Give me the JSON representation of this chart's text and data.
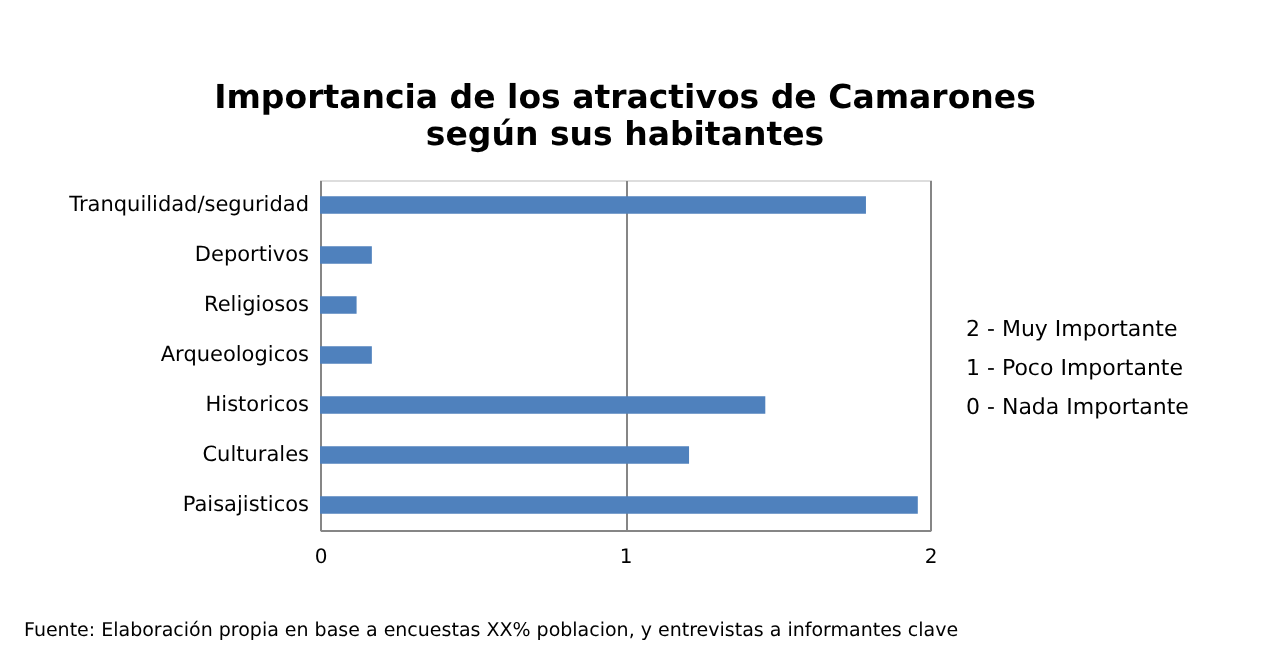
{
  "chart_data": {
    "type": "bar",
    "orientation": "horizontal",
    "title": "Importancia de los atractivos de Camarones\nsegún sus habitantes",
    "categories": [
      "Tranquilidad/seguridad",
      "Deportivos",
      "Religiosos",
      "Arqueologicos",
      "Historicos",
      "Culturales",
      "Paisajisticos"
    ],
    "values": [
      1.79,
      0.17,
      0.12,
      0.17,
      1.46,
      1.21,
      1.96
    ],
    "color": "#4f81bd",
    "xlim": [
      0,
      2
    ],
    "xticks": [
      0,
      1,
      2
    ],
    "grid": "x",
    "annotations": [
      "2 - Muy Importante",
      "1 - Poco Importante",
      "0 - Nada Importante",
      "Fuente: Elaboración propia en base a encuestas XX% poblacion, y entrevistas a informantes clave"
    ]
  }
}
